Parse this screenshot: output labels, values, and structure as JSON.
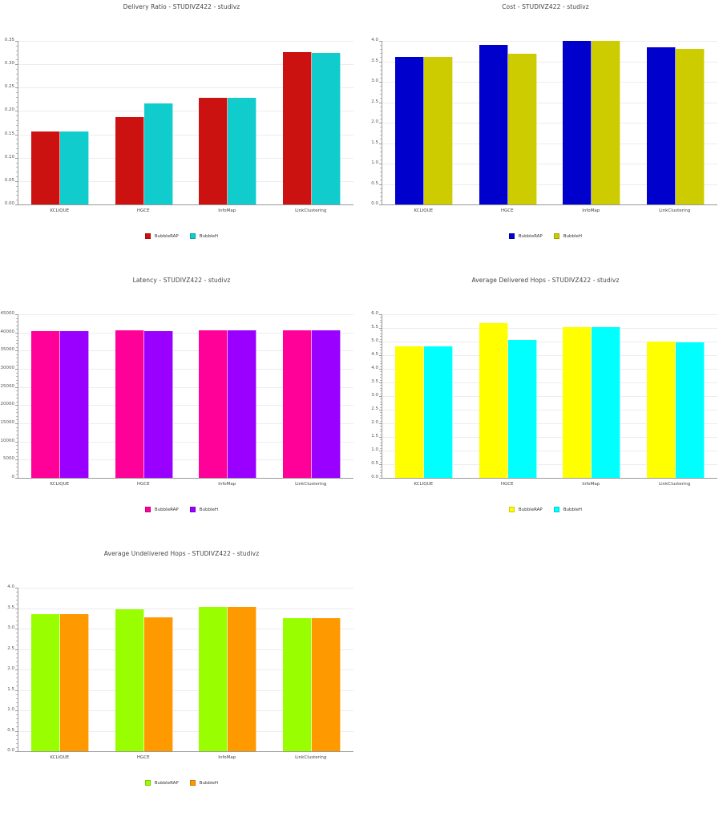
{
  "chart_data": [
    {
      "id": "delivery",
      "type": "bar",
      "title": "Delivery Ratio - STUDIVZ422 - studivz",
      "categories": [
        "KCLIQUE",
        "HGCE",
        "InfoMap",
        "LinkClustering"
      ],
      "series": [
        {
          "name": "BubbleRAP",
          "color": "#cc1111",
          "values": [
            0.157,
            0.187,
            0.228,
            0.326
          ]
        },
        {
          "name": "BubbleH",
          "color": "#11cccc",
          "values": [
            0.157,
            0.217,
            0.228,
            0.325
          ]
        }
      ],
      "xlabel": "",
      "ylabel": "",
      "ylim": [
        0,
        0.35
      ],
      "yticks": [
        "0.00",
        "0.05",
        "0.10",
        "0.15",
        "0.20",
        "0.25",
        "0.30",
        "0.35"
      ],
      "grid": true,
      "legend_position": "bottom"
    },
    {
      "id": "cost",
      "type": "bar",
      "title": "Cost - STUDIVZ422 - studivz",
      "categories": [
        "KCLIQUE",
        "HGCE",
        "InfoMap",
        "LinkClustering"
      ],
      "series": [
        {
          "name": "BubbleRAP",
          "color": "#0000cc",
          "values": [
            3.6,
            3.9,
            4.0,
            3.84
          ]
        },
        {
          "name": "BubbleH",
          "color": "#cccc00",
          "values": [
            3.6,
            3.68,
            4.0,
            3.81
          ]
        }
      ],
      "xlabel": "",
      "ylabel": "",
      "ylim": [
        0,
        4.0
      ],
      "yticks": [
        "0.0",
        "0.5",
        "1.0",
        "1.5",
        "2.0",
        "2.5",
        "3.0",
        "3.5",
        "4.0"
      ],
      "grid": true,
      "legend_position": "bottom"
    },
    {
      "id": "latency",
      "type": "bar",
      "title": "Latency - STUDIVZ422 - studivz",
      "categories": [
        "KCLIQUE",
        "HGCE",
        "InfoMap",
        "LinkClustering"
      ],
      "series": [
        {
          "name": "BubbleRAP",
          "color": "#ff0099",
          "values": [
            40300,
            40500,
            40600,
            40700
          ]
        },
        {
          "name": "BubbleH",
          "color": "#9900ff",
          "values": [
            40300,
            40300,
            40600,
            40700
          ]
        }
      ],
      "xlabel": "",
      "ylabel": "",
      "ylim": [
        0,
        45000
      ],
      "yticks": [
        "0",
        "5000",
        "10000",
        "15000",
        "20000",
        "25000",
        "30000",
        "35000",
        "40000",
        "45000"
      ],
      "grid": true,
      "legend_position": "bottom"
    },
    {
      "id": "delivered_hops",
      "type": "bar",
      "title": "Average Delivered Hops - STUDIVZ422 - studivz",
      "categories": [
        "KCLIQUE",
        "HGCE",
        "InfoMap",
        "LinkClustering"
      ],
      "series": [
        {
          "name": "BubbleRAP",
          "color": "#ffff00",
          "values": [
            4.82,
            5.68,
            5.53,
            5.01
          ]
        },
        {
          "name": "BubbleH",
          "color": "#00ffff",
          "values": [
            4.82,
            5.05,
            5.53,
            4.96
          ]
        }
      ],
      "xlabel": "",
      "ylabel": "",
      "ylim": [
        0,
        6.0
      ],
      "yticks": [
        "0.0",
        "0.5",
        "1.0",
        "1.5",
        "2.0",
        "2.5",
        "3.0",
        "3.5",
        "4.0",
        "4.5",
        "5.0",
        "5.5",
        "6.0"
      ],
      "grid": true,
      "legend_position": "bottom"
    },
    {
      "id": "undelivered_hops",
      "type": "bar",
      "title": "Average Undelivered Hops - STUDIVZ422 - studivz",
      "categories": [
        "KCLIQUE",
        "HGCE",
        "InfoMap",
        "LinkClustering"
      ],
      "series": [
        {
          "name": "BubbleRAP",
          "color": "#99ff00",
          "values": [
            3.36,
            3.48,
            3.53,
            3.26
          ]
        },
        {
          "name": "BubbleH",
          "color": "#ff9900",
          "values": [
            3.36,
            3.28,
            3.53,
            3.25
          ]
        }
      ],
      "xlabel": "",
      "ylabel": "",
      "ylim": [
        0,
        4.0
      ],
      "yticks": [
        "0.0",
        "0.5",
        "1.0",
        "1.5",
        "2.0",
        "2.5",
        "3.0",
        "3.5",
        "4.0"
      ],
      "grid": true,
      "legend_position": "bottom"
    }
  ]
}
